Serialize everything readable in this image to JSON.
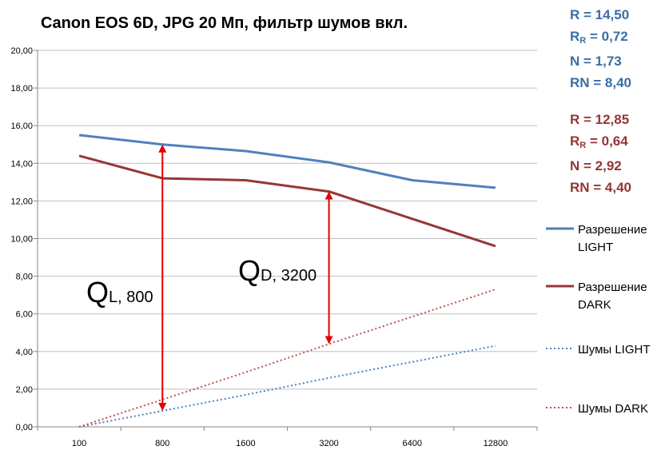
{
  "stats_light": {
    "color": "#3a6ea5",
    "R": "R = 14,50",
    "RR_main": "R",
    "RR_sub": "R",
    "RR_value": " = 0,72",
    "N": "N = 1,73",
    "RN": "RN = 8,40"
  },
  "stats_dark": {
    "color": "#943634",
    "R": "R = 12,85",
    "RR_main": "R",
    "RR_sub": "R",
    "RR_value": " = 0,64",
    "N": "N = 2,92",
    "RN": "RN = 4,40"
  },
  "annotations": {
    "q_light": {
      "main": "Q",
      "sub": "L, 800"
    },
    "q_dark": {
      "main": "Q",
      "sub": "D, 3200"
    }
  },
  "chart_data": {
    "type": "line",
    "title": "Canon EOS 6D, JPG 20 Мп, фильтр шумов вкл.",
    "categories": [
      "100",
      "800",
      "1600",
      "3200",
      "6400",
      "12800"
    ],
    "ylim": [
      0,
      20
    ],
    "yticks": [
      "0,00",
      "2,00",
      "4,00",
      "6,00",
      "8,00",
      "10,00",
      "12,00",
      "14,00",
      "16,00",
      "18,00",
      "20,00"
    ],
    "grid": "horizontal",
    "legend_position": "right",
    "series": [
      {
        "name": "Разрешение LIGHT",
        "name_lines": [
          "Разрешение",
          "LIGHT"
        ],
        "color": "#4f81bd",
        "style": "solid",
        "values": [
          15.5,
          15.0,
          14.65,
          14.05,
          13.1,
          12.7
        ]
      },
      {
        "name": "Разрешение DARK",
        "name_lines": [
          "Разрешение",
          "DARK"
        ],
        "color": "#953735",
        "style": "solid",
        "values": [
          14.4,
          13.2,
          13.1,
          12.5,
          11.05,
          9.6
        ]
      },
      {
        "name": "Шумы LIGHT",
        "name_lines": [
          "Шумы LIGHT"
        ],
        "color": "#4f81bd",
        "style": "dotted",
        "values": [
          0.0,
          0.85,
          1.7,
          2.6,
          3.45,
          4.3
        ]
      },
      {
        "name": "Шумы DARK",
        "name_lines": [
          "Шумы DARK"
        ],
        "color": "#c0504d",
        "style": "dotted",
        "values": [
          0.0,
          1.45,
          2.9,
          4.4,
          5.85,
          7.3
        ]
      }
    ],
    "arrows": [
      {
        "category": "800",
        "from": 0.85,
        "to": 15.0,
        "color": "#e00000"
      },
      {
        "category": "3200",
        "from": 4.4,
        "to": 12.5,
        "color": "#e00000"
      }
    ]
  }
}
